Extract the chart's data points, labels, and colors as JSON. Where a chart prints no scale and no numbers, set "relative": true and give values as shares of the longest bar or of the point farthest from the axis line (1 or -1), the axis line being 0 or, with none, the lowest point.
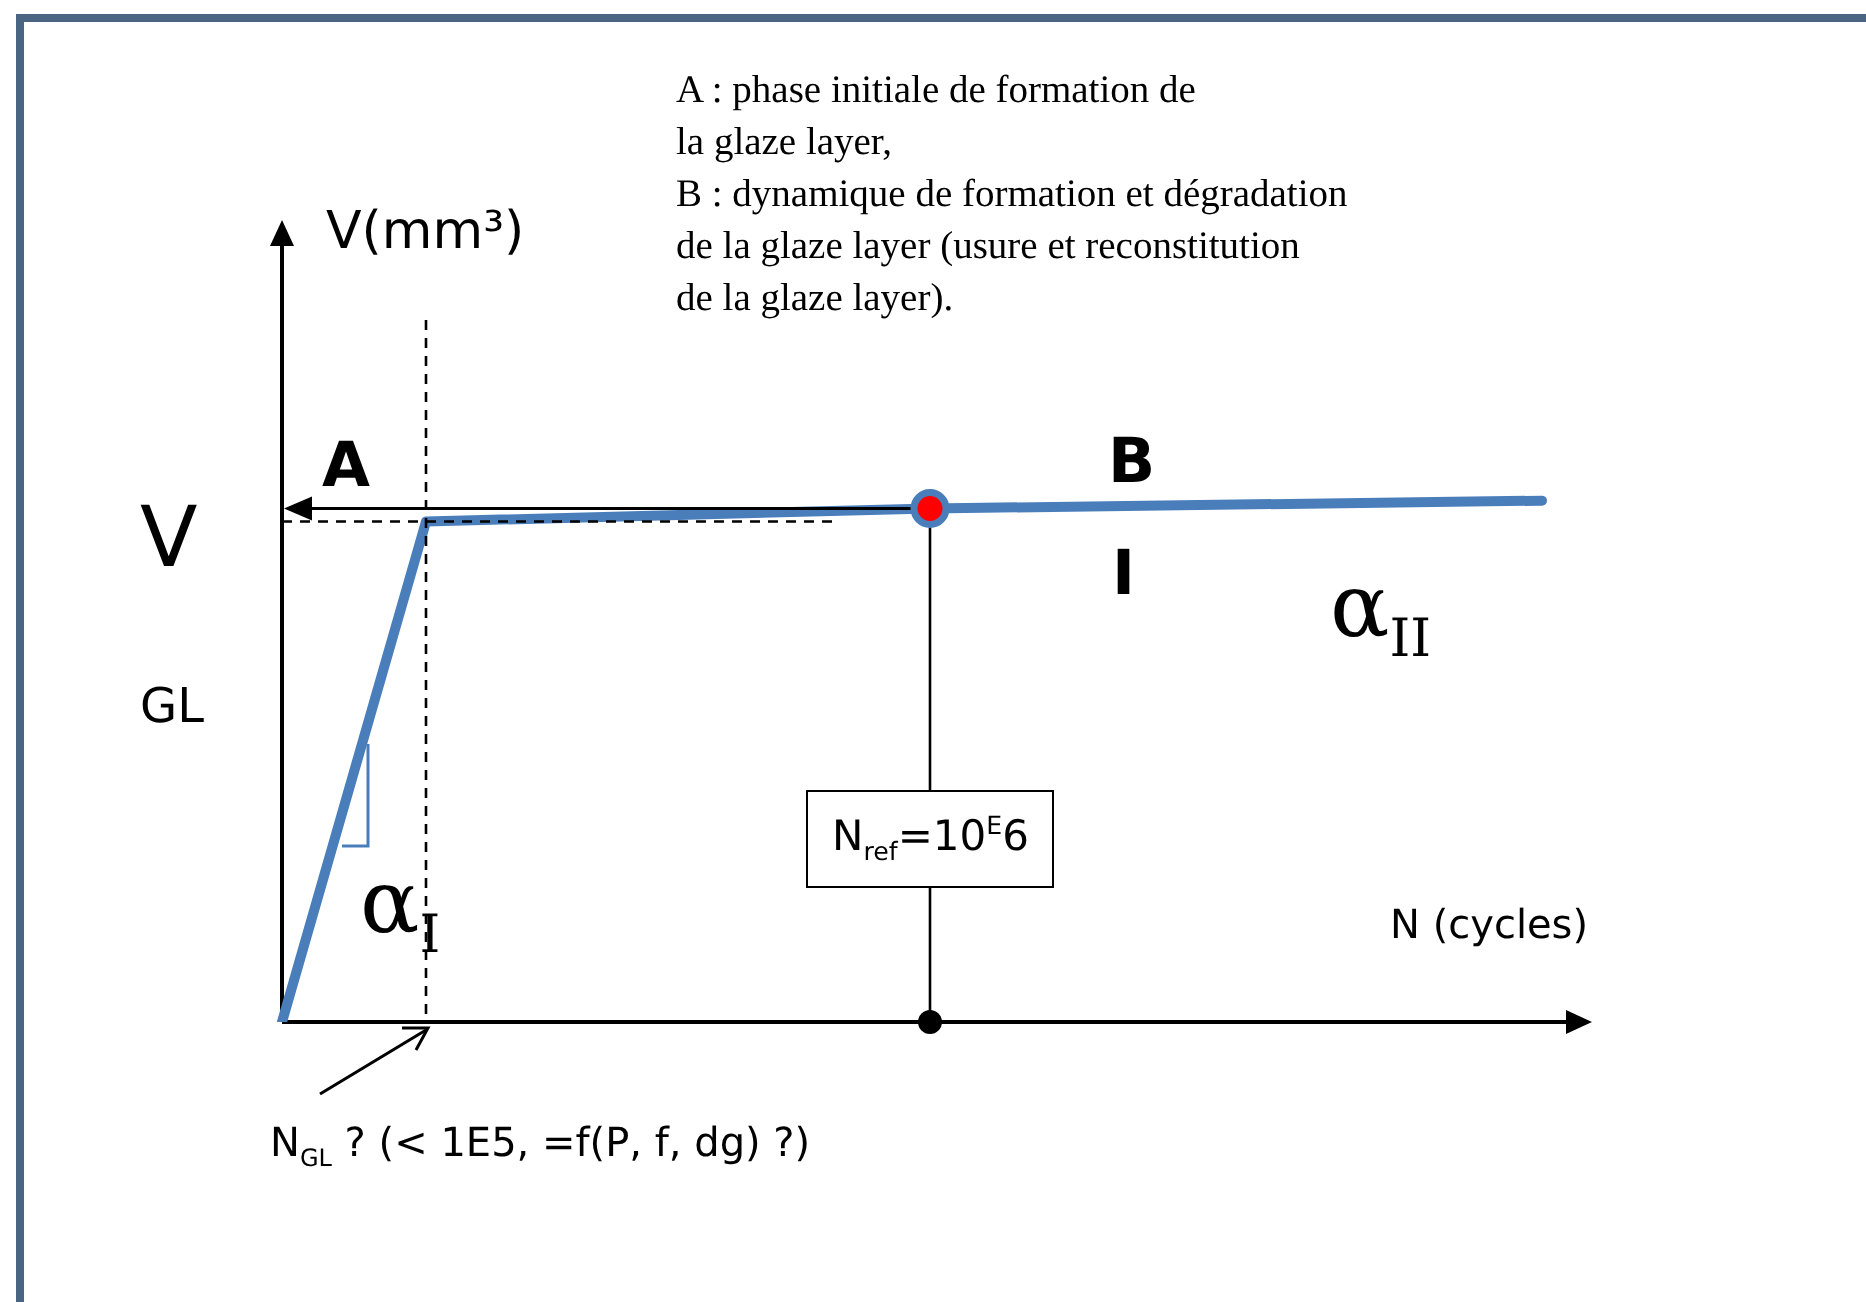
{
  "chart_data": {
    "type": "line",
    "relative": true,
    "xlabel": "N (cycles)",
    "ylabel": "V(mm³)",
    "categories": [
      null,
      null,
      null,
      null,
      null,
      null,
      null,
      null,
      null,
      null,
      null,
      null,
      null,
      null,
      null,
      null,
      null,
      null,
      null,
      null,
      null,
      null,
      null,
      null,
      null,
      null,
      null,
      null,
      null,
      null,
      null,
      null,
      null,
      null,
      null,
      null
    ],
    "series": [
      {
        "color": "#4a7ebb",
        "values": [
          0,
          null,
          null,
          null,
          0.96,
          null,
          null,
          null,
          null,
          null,
          null,
          null,
          null,
          null,
          null,
          null,
          null,
          null,
          0.985,
          null,
          null,
          null,
          null,
          null,
          null,
          null,
          null,
          null,
          null,
          null,
          null,
          null,
          null,
          null,
          null,
          1
        ]
      }
    ],
    "annotations": [
      "A : phase initiale de formation de\nla glaze layer,\nB : dynamique de formation et dégradation\nde la glaze layer (usure et reconstitution\nde la glaze layer).",
      "A",
      "B",
      "I",
      "V",
      "GL",
      "α$_{I}$",
      "α$_{II}$",
      "N$_{GL}$ ? (< 1E5, =f(P, f, dg) ?)",
      "N$_{ref}$=10$^{E}$6"
    ]
  }
}
